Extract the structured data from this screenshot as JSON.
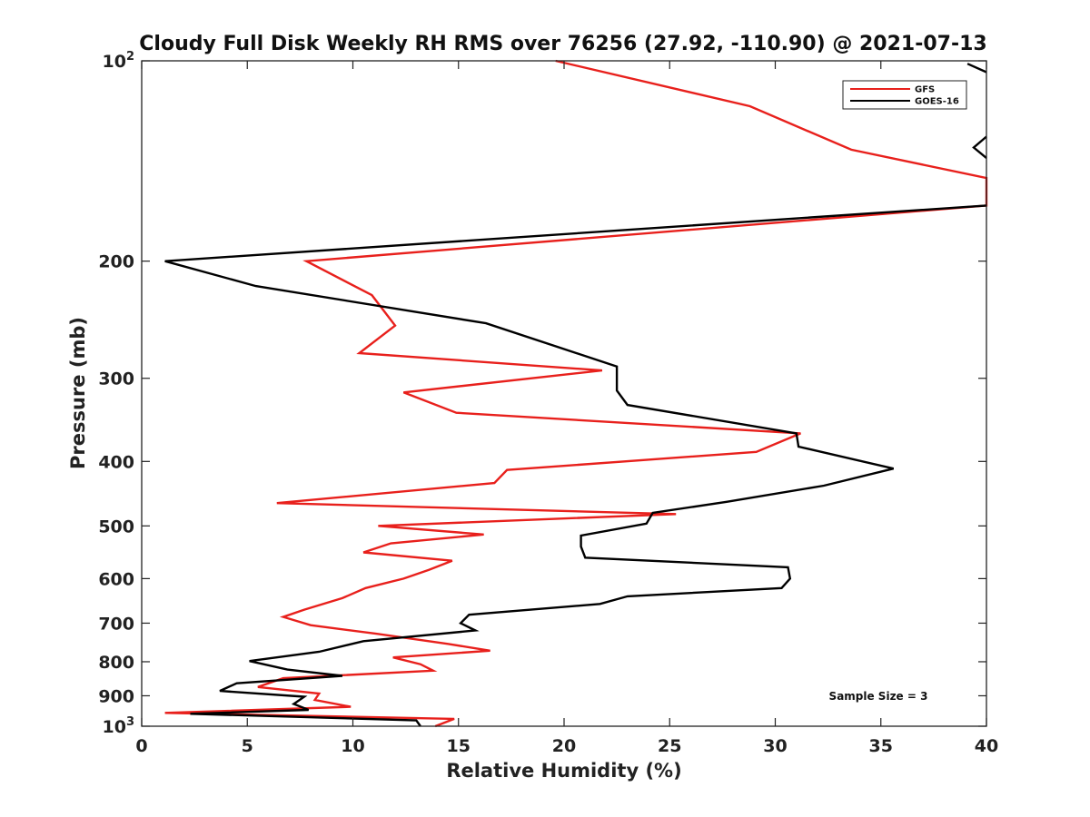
{
  "chart_data": {
    "type": "line",
    "title": "Cloudy Full Disk Weekly RH RMS over 76256 (27.92, -110.90) @ 2021-07-13",
    "xlabel": "Relative Humidity (%)",
    "ylabel": "Pressure (mb)",
    "xlim": [
      0,
      40
    ],
    "ylim": [
      100,
      1000
    ],
    "yscale": "log",
    "y_reversed": true,
    "grid": false,
    "legend_position": "top-right",
    "x_ticks": [
      "0",
      "5",
      "10",
      "15",
      "20",
      "25",
      "30",
      "35",
      "40"
    ],
    "y_ticks": [
      {
        "value": 100,
        "base": "10",
        "exp": "2"
      },
      {
        "value": 200,
        "label": "200"
      },
      {
        "value": 300,
        "label": "300"
      },
      {
        "value": 400,
        "label": "400"
      },
      {
        "value": 500,
        "label": "500"
      },
      {
        "value": 600,
        "label": "600"
      },
      {
        "value": 700,
        "label": "700"
      },
      {
        "value": 800,
        "label": "800"
      },
      {
        "value": 900,
        "label": "900"
      },
      {
        "value": 1000,
        "base": "10",
        "exp": "3"
      }
    ],
    "annotation": "Sample Size = 3",
    "series": [
      {
        "name": "GFS",
        "color": "#e8201c",
        "points": [
          [
            19.6,
            100
          ],
          [
            28.8,
            117
          ],
          [
            33.6,
            136
          ],
          [
            40,
            150
          ],
          [
            40,
            165
          ],
          [
            7.8,
            200
          ],
          [
            10.9,
            225
          ],
          [
            12,
            250
          ],
          [
            10.3,
            275
          ],
          [
            21.8,
            292
          ],
          [
            12.4,
            315
          ],
          [
            14.9,
            338
          ],
          [
            31.2,
            363
          ],
          [
            29.1,
            387
          ],
          [
            17.3,
            412
          ],
          [
            16.7,
            431
          ],
          [
            6.4,
            462
          ],
          [
            25.3,
            480
          ],
          [
            11.2,
            500
          ],
          [
            16.2,
            515
          ],
          [
            11.8,
            531
          ],
          [
            10.5,
            548
          ],
          [
            14.7,
            564
          ],
          [
            13.6,
            582
          ],
          [
            12.4,
            600
          ],
          [
            10.6,
            620
          ],
          [
            9.5,
            642
          ],
          [
            7.7,
            668
          ],
          [
            6.7,
            685
          ],
          [
            8.0,
            705
          ],
          [
            11.1,
            726
          ],
          [
            14.5,
            752
          ],
          [
            16.5,
            770
          ],
          [
            11.9,
            788
          ],
          [
            13.2,
            807
          ],
          [
            13.8,
            825
          ],
          [
            6.7,
            847
          ],
          [
            5.5,
            873
          ],
          [
            8.4,
            893
          ],
          [
            8.2,
            913
          ],
          [
            9.9,
            935
          ],
          [
            1.1,
            955
          ],
          [
            14.8,
            975
          ],
          [
            13.9,
            1000
          ]
        ]
      },
      {
        "name": "GOES-16",
        "color": "#000000",
        "points": [
          [
            40,
            165
          ],
          [
            1.1,
            200
          ],
          [
            5.4,
            218
          ],
          [
            16.3,
            248
          ],
          [
            22.5,
            288
          ],
          [
            22.5,
            313
          ],
          [
            23.0,
            329
          ],
          [
            31.0,
            363
          ],
          [
            31.1,
            380
          ],
          [
            35.6,
            410
          ],
          [
            32.3,
            435
          ],
          [
            27.7,
            460
          ],
          [
            24.2,
            478
          ],
          [
            23.9,
            496
          ],
          [
            20.8,
            517
          ],
          [
            20.8,
            537
          ],
          [
            21.0,
            558
          ],
          [
            30.6,
            577
          ],
          [
            30.7,
            600
          ],
          [
            30.3,
            620
          ],
          [
            23.0,
            638
          ],
          [
            21.7,
            655
          ],
          [
            15.5,
            680
          ],
          [
            15.1,
            700
          ],
          [
            15.8,
            718
          ],
          [
            10.5,
            745
          ],
          [
            8.4,
            773
          ],
          [
            5.1,
            798
          ],
          [
            6.9,
            822
          ],
          [
            9.5,
            840
          ],
          [
            4.5,
            862
          ],
          [
            3.7,
            885
          ],
          [
            7.7,
            903
          ],
          [
            7.2,
            926
          ],
          [
            7.9,
            945
          ],
          [
            2.3,
            958
          ],
          [
            13.0,
            980
          ],
          [
            13.2,
            1000
          ]
        ]
      }
    ],
    "unresolved_marks": [
      {
        "name": "top-right-off-scale-mark",
        "points": [
          [
            39.1,
            101
          ],
          [
            40,
            104
          ]
        ]
      },
      {
        "name": "mid-right-off-scale-mark",
        "points": [
          [
            40,
            130
          ],
          [
            39.4,
            135
          ],
          [
            40,
            140
          ]
        ]
      }
    ]
  }
}
